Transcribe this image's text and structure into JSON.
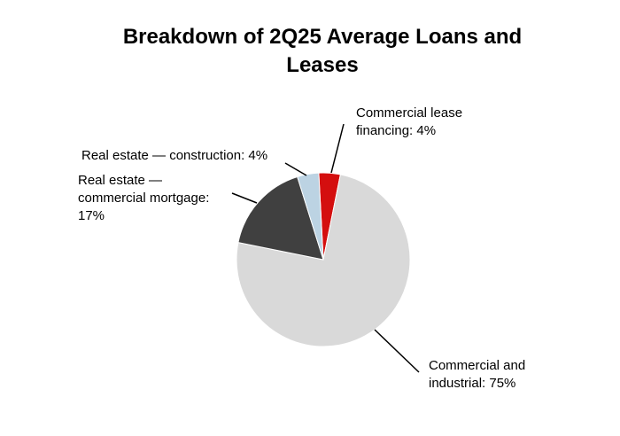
{
  "chart_data": {
    "type": "pie",
    "title": "Breakdown of 2Q25 Average Loans and Leases",
    "categories": [
      "Commercial lease financing: 4%",
      "Commercial and industrial: 75%",
      "Real estate — commercial mortgage: 17%",
      "Real estate — construction: 4%"
    ],
    "values": [
      4,
      75,
      17,
      4
    ],
    "colors": [
      "#d40f0f",
      "#d9d9d9",
      "#404040",
      "#bcd3e3"
    ]
  }
}
